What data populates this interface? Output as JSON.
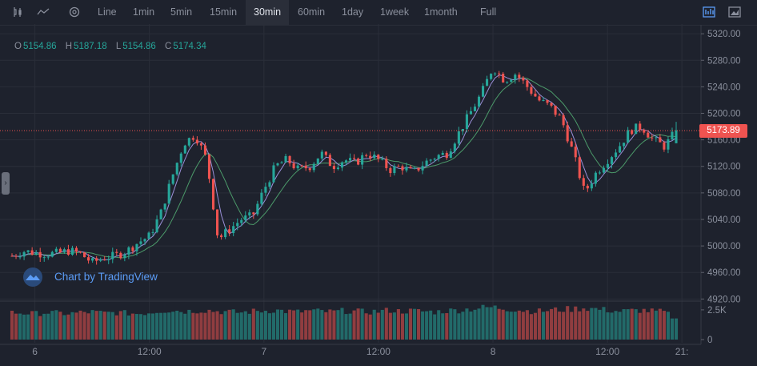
{
  "toolbar": {
    "icons": [
      "candles-icon",
      "line-chart-icon",
      "settings-icon"
    ],
    "intervals": [
      "Line",
      "1min",
      "5min",
      "15min",
      "30min",
      "60min",
      "1day",
      "1week",
      "1month",
      "Full"
    ],
    "active_interval": "30min",
    "right_icons": [
      "chart-style-icon",
      "screenshot-icon"
    ]
  },
  "ohlc": {
    "o_label": "O",
    "o": "5154.86",
    "h_label": "H",
    "h": "5187.18",
    "l_label": "L",
    "l": "5154.86",
    "c_label": "C",
    "c": "5174.34"
  },
  "brand": {
    "text": "Chart by TradingView",
    "icon": "tradingview-cloud-icon"
  },
  "last_price_label": "5173.89",
  "colors": {
    "up": "#26a69a",
    "down": "#ef5350",
    "ma_fast": "#9a8fd8",
    "ma_slow": "#4c9a6a",
    "background": "#1e222d"
  },
  "chart_data": {
    "type": "candlestick",
    "price_axis": {
      "ticks": [
        5320,
        5280,
        5240,
        5200,
        5160,
        5120,
        5080,
        5040,
        5000,
        4960,
        4920
      ],
      "tick_labels": [
        "5320.00",
        "5280.00",
        "5240.00",
        "5200.00",
        "5160.00",
        "5120.00",
        "5080.00",
        "5040.00",
        "5000.00",
        "4960.00",
        "4920.00"
      ],
      "range": [
        4918,
        5325
      ]
    },
    "volume_axis": {
      "tick_labels": [
        "2.5K",
        "0"
      ],
      "ticks": [
        2500,
        0
      ],
      "range": [
        0,
        3100
      ]
    },
    "time_axis": {
      "tick_labels": [
        "6",
        "12:00",
        "7",
        "12:00",
        "8",
        "12:00",
        "21:"
      ],
      "tick_positions": [
        2,
        12,
        22,
        32,
        42,
        52,
        58.5
      ]
    },
    "last_price": 5173.89,
    "close_path": [
      4985,
      4992,
      4990,
      4988,
      4989,
      4993,
      4988,
      4975,
      4982,
      4985,
      4992,
      5005,
      5015,
      5050,
      5105,
      5155,
      5168,
      5130,
      5010,
      5025,
      5040,
      5045,
      5085,
      5120,
      5130,
      5115,
      5120,
      5140,
      5120,
      5130,
      5125,
      5140,
      5130,
      5115,
      5120,
      5110,
      5125,
      5135,
      5140,
      5170,
      5200,
      5230,
      5270,
      5250,
      5260,
      5240,
      5220,
      5210,
      5190,
      5140,
      5080,
      5110,
      5130,
      5150,
      5175,
      5180,
      5160,
      5150,
      5174
    ],
    "volume_path": [
      2300,
      2250,
      2200,
      2300,
      2250,
      2200,
      2300,
      2350,
      2250,
      2300,
      2250,
      2200,
      2300,
      2450,
      2500,
      2400,
      2450,
      2500,
      2400,
      2350,
      2300,
      2400,
      2450,
      2500,
      2400,
      2350,
      2450,
      2400,
      2350,
      2450,
      2400,
      2350,
      2400,
      2500,
      2400,
      2450,
      2400,
      2350,
      2450,
      2500,
      2600,
      2700,
      2750,
      2650,
      2550,
      2450,
      2400,
      2500,
      2550,
      2600,
      2700,
      2600,
      2500,
      2400,
      2450,
      2500,
      2400,
      2350,
      1700
    ]
  }
}
